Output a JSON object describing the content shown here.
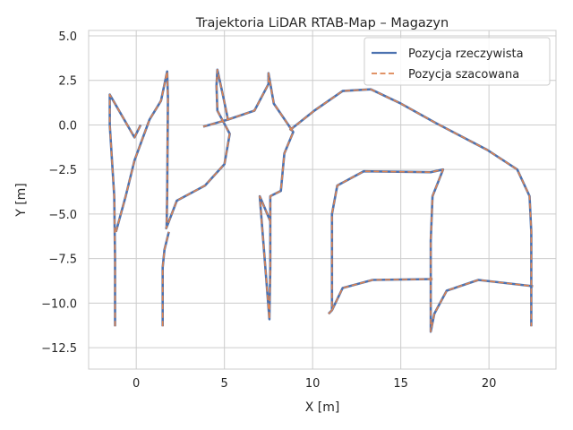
{
  "chart_data": {
    "type": "line",
    "title": "Trajektoria LiDAR RTAB-Map – Magazyn",
    "xlabel": "X [m]",
    "ylabel": "Y [m]",
    "xlim": [
      -2.7,
      23.8
    ],
    "ylim": [
      -13.7,
      5.3
    ],
    "xticks": [
      0,
      5,
      10,
      15,
      20
    ],
    "yticks": [
      5.0,
      2.5,
      0.0,
      -2.5,
      -5.0,
      -7.5,
      -10.0,
      -12.5
    ],
    "xtick_labels": [
      "0",
      "5",
      "10",
      "15",
      "20"
    ],
    "ytick_labels": [
      "5.0",
      "2.5",
      "0.0",
      "−2.5",
      "−5.0",
      "−7.5",
      "−10.0",
      "−12.5"
    ],
    "grid": true,
    "legend_position": "top-right",
    "series": [
      {
        "name": "Pozycja rzeczywista",
        "color": "#4c72b0",
        "style": "solid",
        "x": [
          -1.2,
          -1.2,
          -1.25,
          -1.5,
          -1.5,
          -0.1,
          0.25
        ],
        "y": [
          -11.3,
          -7.5,
          -4.0,
          0.0,
          1.7,
          -0.7,
          0.0
        ],
        "segments": [
          {
            "x": [
              -1.2,
              -1.2,
              -1.25,
              -1.5,
              -1.5,
              -0.1,
              0.25
            ],
            "y": [
              -11.3,
              -7.5,
              -4.0,
              0.0,
              1.7,
              -0.7,
              0.0
            ]
          },
          {
            "x": [
              -1.15,
              -0.6,
              -0.1,
              0.75,
              1.4,
              1.75,
              1.8,
              1.75,
              1.72,
              1.7,
              2.3,
              3.9,
              5.0,
              5.3,
              4.6,
              4.55,
              4.6,
              4.95,
              5.2,
              3.8
            ],
            "y": [
              -6.0,
              -4.0,
              -2.0,
              0.3,
              1.35,
              3.0,
              1.5,
              -4.0,
              -5.7,
              -5.8,
              -4.25,
              -3.4,
              -2.2,
              -0.5,
              0.8,
              2.2,
              3.1,
              1.5,
              0.3,
              -0.1
            ]
          },
          {
            "x": [
              1.5,
              1.5,
              1.6,
              1.85
            ],
            "y": [
              -11.3,
              -8.0,
              -7.0,
              -6.0
            ]
          },
          {
            "x": [
              5.2,
              6.7,
              7.5,
              7.5,
              7.8,
              8.9,
              8.4,
              8.2,
              7.6,
              7.6,
              7.6,
              7.55,
              7.0,
              7.6
            ],
            "y": [
              0.3,
              0.8,
              2.3,
              2.9,
              1.2,
              -0.4,
              -1.6,
              -3.7,
              -4.0,
              -5.5,
              -8.0,
              -10.9,
              -4.0,
              -5.4
            ]
          },
          {
            "x": [
              8.7,
              10.1,
              11.7,
              13.3,
              15.0,
              17.0,
              19.9,
              21.6,
              22.3,
              22.4,
              22.4
            ],
            "y": [
              -0.3,
              0.8,
              1.9,
              2.0,
              1.2,
              0.1,
              -1.4,
              -2.5,
              -4.0,
              -6.0,
              -11.3
            ]
          },
          {
            "x": [
              10.9,
              11.1,
              11.1,
              11.4,
              12.9,
              16.7,
              17.4,
              16.8,
              16.7,
              16.7,
              16.9,
              17.6,
              19.4,
              22.5
            ],
            "y": [
              -10.6,
              -10.4,
              -5.0,
              -3.4,
              -2.6,
              -2.65,
              -2.5,
              -4.0,
              -6.5,
              -11.6,
              -10.6,
              -9.3,
              -8.7,
              -9.05
            ]
          },
          {
            "x": [
              11.1,
              11.7,
              13.4,
              16.8
            ],
            "y": [
              -10.4,
              -9.15,
              -8.7,
              -8.65
            ]
          }
        ]
      },
      {
        "name": "Pozycja szacowana",
        "color": "#dd8452",
        "style": "dashed",
        "segments": [
          {
            "x": [
              -1.2,
              -1.2,
              -1.25,
              -1.5,
              -1.5,
              -0.1,
              0.25
            ],
            "y": [
              -11.3,
              -7.5,
              -4.0,
              0.0,
              1.7,
              -0.7,
              0.0
            ]
          },
          {
            "x": [
              -1.15,
              -0.6,
              -0.1,
              0.75,
              1.4,
              1.75,
              1.8,
              1.75,
              1.72,
              1.7,
              2.3,
              3.9,
              5.0,
              5.3,
              4.6,
              4.55,
              4.6,
              4.95,
              5.2,
              3.8
            ],
            "y": [
              -6.0,
              -4.0,
              -2.0,
              0.3,
              1.35,
              3.0,
              1.5,
              -4.0,
              -5.7,
              -5.8,
              -4.25,
              -3.4,
              -2.2,
              -0.5,
              0.8,
              2.2,
              3.1,
              1.5,
              0.3,
              -0.1
            ]
          },
          {
            "x": [
              1.5,
              1.5,
              1.6,
              1.85
            ],
            "y": [
              -11.3,
              -8.0,
              -7.0,
              -6.0
            ]
          },
          {
            "x": [
              5.2,
              6.7,
              7.5,
              7.5,
              7.8,
              8.9,
              8.4,
              8.2,
              7.6,
              7.6,
              7.6,
              7.55,
              7.0,
              7.6
            ],
            "y": [
              0.3,
              0.8,
              2.3,
              2.9,
              1.2,
              -0.4,
              -1.6,
              -3.7,
              -4.0,
              -5.5,
              -8.0,
              -10.9,
              -4.0,
              -5.4
            ]
          },
          {
            "x": [
              8.7,
              10.1,
              11.7,
              13.3,
              15.0,
              17.0,
              19.9,
              21.6,
              22.3,
              22.4,
              22.4
            ],
            "y": [
              -0.3,
              0.8,
              1.9,
              2.0,
              1.2,
              0.1,
              -1.4,
              -2.5,
              -4.0,
              -6.0,
              -11.3
            ]
          },
          {
            "x": [
              10.9,
              11.1,
              11.1,
              11.4,
              12.9,
              16.7,
              17.4,
              16.8,
              16.7,
              16.7,
              16.9,
              17.6,
              19.4,
              22.5
            ],
            "y": [
              -10.6,
              -10.4,
              -5.0,
              -3.4,
              -2.6,
              -2.65,
              -2.5,
              -4.0,
              -6.5,
              -11.6,
              -10.6,
              -9.3,
              -8.7,
              -9.05
            ]
          },
          {
            "x": [
              11.1,
              11.7,
              13.4,
              16.8
            ],
            "y": [
              -10.4,
              -9.15,
              -8.7,
              -8.65
            ]
          }
        ]
      }
    ]
  }
}
